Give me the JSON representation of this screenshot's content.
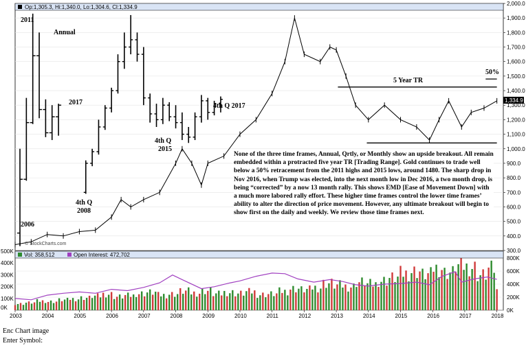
{
  "chart_data": {
    "type": "bar",
    "subtype": "ohlc-annual-overlay-with-monthly-line",
    "header_ohlc": "Op:1,305.3, Hi:1,340.0, Lo:1,304.6, Cl:1,334.9",
    "last_price_label": "1,334.9",
    "price_axis": {
      "ticks": [
        "2,000.0",
        "1,900.0",
        "1,800.0",
        "1,700.0",
        "1,600.0",
        "1,500.0",
        "1,400.0",
        "1,300.0",
        "1,200.0",
        "1,100.0",
        "1,000.0",
        "900.0",
        "800.0",
        "700.0",
        "600.0",
        "500.0",
        "400.0",
        "300.0"
      ],
      "ylim": [
        300,
        2000
      ]
    },
    "x_axis": {
      "ticks": [
        "2003",
        "2004",
        "2005",
        "2006",
        "2007",
        "2008",
        "2009",
        "2010",
        "2011",
        "2012",
        "2013",
        "2014",
        "2015",
        "2016",
        "2017",
        "2018"
      ]
    },
    "annual_bars": [
      {
        "x": 2003.15,
        "open": 420,
        "high": 1000,
        "low": 330,
        "close": 790
      },
      {
        "x": 2003.35,
        "open": 790,
        "high": 1350,
        "low": 780,
        "close": 1180
      },
      {
        "x": 2003.55,
        "open": 1180,
        "high": 1930,
        "low": 1170,
        "close": 1640
      },
      {
        "x": 2003.75,
        "open": 1640,
        "high": 1800,
        "low": 1210,
        "close": 1270
      },
      {
        "x": 2003.95,
        "open": 1270,
        "high": 1340,
        "low": 1080,
        "close": 1110
      },
      {
        "x": 2004.15,
        "open": 1110,
        "high": 1300,
        "low": 1060,
        "close": 1220
      },
      {
        "x": 2004.35,
        "open": 1220,
        "high": 1310,
        "low": 1090,
        "close": 1300
      }
    ],
    "quarterly_bars": [
      {
        "x": 2005.2,
        "open": 700,
        "high": 920,
        "low": 690,
        "close": 900
      },
      {
        "x": 2005.4,
        "open": 900,
        "high": 1000,
        "low": 880,
        "close": 980
      },
      {
        "x": 2005.6,
        "open": 980,
        "high": 1200,
        "low": 960,
        "close": 1150
      },
      {
        "x": 2005.8,
        "open": 1150,
        "high": 1300,
        "low": 1130,
        "close": 1280
      },
      {
        "x": 2006.0,
        "open": 1280,
        "high": 1420,
        "low": 1250,
        "close": 1400
      },
      {
        "x": 2006.2,
        "open": 1400,
        "high": 1650,
        "low": 1380,
        "close": 1600
      },
      {
        "x": 2006.4,
        "open": 1600,
        "high": 1800,
        "low": 1550,
        "close": 1700
      },
      {
        "x": 2006.6,
        "open": 1700,
        "high": 1920,
        "low": 1650,
        "close": 1750
      },
      {
        "x": 2006.8,
        "open": 1750,
        "high": 1800,
        "low": 1600,
        "close": 1650
      },
      {
        "x": 2007.0,
        "open": 1650,
        "high": 1700,
        "low": 1300,
        "close": 1350
      },
      {
        "x": 2007.2,
        "open": 1350,
        "high": 1380,
        "low": 1180,
        "close": 1240
      },
      {
        "x": 2007.4,
        "open": 1240,
        "high": 1310,
        "low": 1150,
        "close": 1200
      },
      {
        "x": 2007.6,
        "open": 1200,
        "high": 1350,
        "low": 1170,
        "close": 1300
      },
      {
        "x": 2007.8,
        "open": 1300,
        "high": 1320,
        "low": 1190,
        "close": 1220
      },
      {
        "x": 2008.0,
        "open": 1220,
        "high": 1300,
        "low": 1140,
        "close": 1180
      },
      {
        "x": 2008.2,
        "open": 1180,
        "high": 1250,
        "low": 1060,
        "close": 1100
      },
      {
        "x": 2008.4,
        "open": 1100,
        "high": 1150,
        "low": 1040,
        "close": 1080
      },
      {
        "x": 2008.6,
        "open": 1080,
        "high": 1250,
        "low": 1060,
        "close": 1220
      },
      {
        "x": 2008.8,
        "open": 1220,
        "high": 1370,
        "low": 1180,
        "close": 1330
      },
      {
        "x": 2009.0,
        "open": 1330,
        "high": 1350,
        "low": 1200,
        "close": 1250
      },
      {
        "x": 2009.2,
        "open": 1250,
        "high": 1330,
        "low": 1230,
        "close": 1310
      },
      {
        "x": 2009.4,
        "open": 1310,
        "high": 1360,
        "low": 1250,
        "close": 1340
      }
    ],
    "monthly_line": {
      "x": [
        2003.0,
        2003.5,
        2004.0,
        2004.5,
        2005.0,
        2005.5,
        2006.0,
        2006.3,
        2006.6,
        2007.0,
        2007.5,
        2008.0,
        2008.2,
        2008.5,
        2008.8,
        2009.0,
        2009.5,
        2010.0,
        2010.5,
        2011.0,
        2011.4,
        2011.7,
        2012.0,
        2012.5,
        2012.8,
        2013.0,
        2013.3,
        2013.6,
        2014.0,
        2014.5,
        2015.0,
        2015.5,
        2015.9,
        2016.2,
        2016.5,
        2016.9,
        2017.2,
        2017.6,
        2018.0
      ],
      "y": [
        340,
        360,
        410,
        400,
        430,
        440,
        530,
        650,
        600,
        650,
        700,
        900,
        1000,
        900,
        750,
        900,
        950,
        1100,
        1200,
        1380,
        1600,
        1900,
        1650,
        1600,
        1700,
        1680,
        1500,
        1300,
        1200,
        1300,
        1200,
        1150,
        1060,
        1200,
        1330,
        1150,
        1250,
        1280,
        1330
      ]
    },
    "ohlc_style": {
      "up_color": "#1a7a1a",
      "down_color": "#cc1f1f",
      "line_color": "#000000"
    },
    "annotations": {
      "label_2011": "2011",
      "label_annual": "Annual",
      "label_2017": "2017",
      "label_4thq_2017": "4th Q 2017",
      "label_4thq_2015_a": "4th Q",
      "label_4thq_2015_b": "2015",
      "label_4thq_2008_a": "4th Q",
      "label_4thq_2008_b": "2008",
      "label_2006": "2006",
      "label_5yr": "5 Year TR",
      "label_50pct": "50%",
      "watermark": "© StockCharts.com"
    },
    "trading_range": {
      "top": 1425,
      "bottom": 1040,
      "x_start": 2013.05,
      "x_end": 2018.0
    },
    "retracement_50": 1480,
    "commentary": "None of the three time frames, Annual, Qrtly, or Monthly show an upside breakout.  All remain embedded within a protracted five year TR [Trading Range].  Gold continues to trade well below a 50% retracement from the 2011 highs and 2015 lows, around 1480.  The sharp drop in Nov 2016, when Trump was elected, into the next month low in Dec 2016, a two month drop, is being “corrected” by a now 13 month rally.  This shows EMD [Ease of Movement Down] with a much more labored rally effort.  These higher time frames control the lower time frames’ ability to alter the direction of price movement.  However, any ultimate breakout will begin to show first on the daily and weekly.  We review those time frames next.",
    "volume_panel": {
      "vol_label": "Vol: 358,512",
      "oi_label": "Open Interest: 472,702",
      "left_ticks": [
        "500K",
        "400K",
        "300K",
        "200K",
        "100K",
        "0K"
      ],
      "right_ticks": [
        "800K",
        "600K",
        "400K",
        "200K",
        "0K"
      ],
      "vol_ylim": [
        0,
        800000
      ],
      "oi_points": [
        [
          2003.0,
          180000
        ],
        [
          2003.5,
          160000
        ],
        [
          2004.0,
          230000
        ],
        [
          2004.5,
          260000
        ],
        [
          2005.0,
          280000
        ],
        [
          2005.5,
          260000
        ],
        [
          2006.0,
          320000
        ],
        [
          2006.5,
          300000
        ],
        [
          2007.0,
          350000
        ],
        [
          2007.5,
          420000
        ],
        [
          2007.9,
          540000
        ],
        [
          2008.2,
          470000
        ],
        [
          2008.8,
          330000
        ],
        [
          2009.2,
          360000
        ],
        [
          2009.7,
          420000
        ],
        [
          2010.0,
          450000
        ],
        [
          2010.5,
          520000
        ],
        [
          2011.0,
          570000
        ],
        [
          2011.4,
          560000
        ],
        [
          2011.8,
          480000
        ],
        [
          2012.3,
          430000
        ],
        [
          2012.8,
          470000
        ],
        [
          2013.2,
          440000
        ],
        [
          2013.6,
          390000
        ],
        [
          2014.0,
          370000
        ],
        [
          2014.5,
          400000
        ],
        [
          2015.0,
          410000
        ],
        [
          2015.5,
          430000
        ],
        [
          2015.9,
          390000
        ],
        [
          2016.3,
          520000
        ],
        [
          2016.7,
          590000
        ],
        [
          2016.9,
          430000
        ],
        [
          2017.3,
          480000
        ],
        [
          2017.7,
          510000
        ],
        [
          2018.0,
          472702
        ]
      ],
      "volume_samples": [
        120000,
        140000,
        170000,
        160000,
        190000,
        210000,
        230000,
        260000,
        300000,
        250000,
        270000,
        310000,
        330000,
        280000,
        300000,
        350000,
        320000,
        360000,
        300000,
        330000,
        310000,
        340000,
        290000,
        300000,
        350000,
        400000,
        380000,
        420000,
        500000,
        460000,
        440000,
        520000,
        480000,
        550000,
        600000,
        680000,
        720000,
        660000,
        780000,
        700000,
        820000,
        800000,
        650000,
        760000,
        360000
      ],
      "vol_colors": {
        "up": "#2e8b2e",
        "down": "#d03a3a"
      },
      "oi_color": "#a040c0"
    }
  },
  "footer": {
    "line1": "Enc Chart image",
    "line2": "Enter Symbol:"
  }
}
